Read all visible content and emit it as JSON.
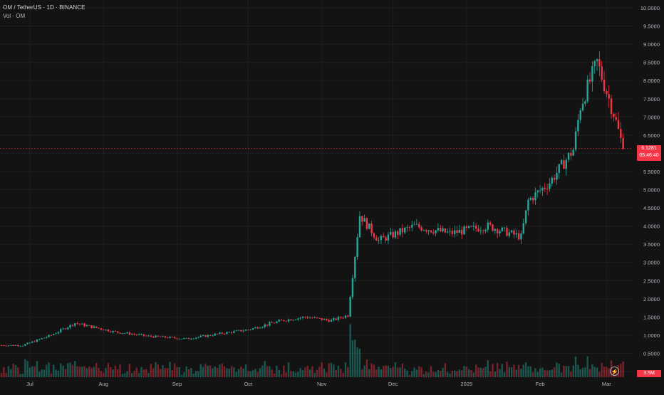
{
  "header": {
    "symbol_line": "OM / TetherUS · 1D · BINANCE",
    "volume_label": "Vol · OM"
  },
  "price_tag": {
    "price": "6.1281",
    "countdown": "05:46:40"
  },
  "volume_tag": {
    "value": "3.5M"
  },
  "colors": {
    "up": "#26a69a",
    "down": "#f23645",
    "background": "#131313",
    "grid": "#1f1f1f",
    "text": "#b2b5be"
  },
  "chart_data": {
    "type": "candlestick",
    "title": "OM / TetherUS · 1D · BINANCE",
    "y_axis": {
      "ticks": [
        "10.0000",
        "9.5000",
        "9.0000",
        "8.5000",
        "8.0000",
        "7.5000",
        "7.0000",
        "6.5000",
        "6.0000",
        "5.5000",
        "5.0000",
        "4.5000",
        "4.0000",
        "3.5000",
        "3.0000",
        "2.5000",
        "2.0000",
        "1.5000",
        "1.0000",
        "0.5000",
        "0.0000"
      ],
      "range": [
        0,
        10
      ]
    },
    "x_axis": {
      "ticks": [
        "Jul",
        "Aug",
        "Sep",
        "Oct",
        "Nov",
        "Dec",
        "2025",
        "Feb",
        "Mar"
      ],
      "range": [
        "2024-06-19",
        "2025-03-12"
      ]
    },
    "grid": true,
    "approx_close_anchors": [
      [
        "2024-06-19",
        0.72
      ],
      [
        "2024-06-28",
        0.72
      ],
      [
        "2024-07-10",
        1.0
      ],
      [
        "2024-07-20",
        1.33
      ],
      [
        "2024-08-05",
        1.1
      ],
      [
        "2024-08-20",
        0.97
      ],
      [
        "2024-09-05",
        0.9
      ],
      [
        "2024-09-20",
        1.05
      ],
      [
        "2024-10-01",
        1.15
      ],
      [
        "2024-10-15",
        1.4
      ],
      [
        "2024-10-25",
        1.5
      ],
      [
        "2024-11-05",
        1.4
      ],
      [
        "2024-11-12",
        1.55
      ],
      [
        "2024-11-15",
        3.2
      ],
      [
        "2024-11-17",
        4.3
      ],
      [
        "2024-11-25",
        3.6
      ],
      [
        "2024-12-10",
        4.0
      ],
      [
        "2024-12-25",
        3.8
      ],
      [
        "2025-01-10",
        4.0
      ],
      [
        "2025-01-24",
        3.7
      ],
      [
        "2025-01-27",
        4.7
      ],
      [
        "2025-02-05",
        5.2
      ],
      [
        "2025-02-15",
        6.1
      ],
      [
        "2025-02-18",
        7.3
      ],
      [
        "2025-02-25",
        8.5
      ],
      [
        "2025-03-04",
        7.1
      ],
      [
        "2025-03-08",
        6.128
      ]
    ],
    "last_price": 6.1281,
    "volume_series": {
      "name": "Vol · OM",
      "last": "3.5M"
    }
  }
}
